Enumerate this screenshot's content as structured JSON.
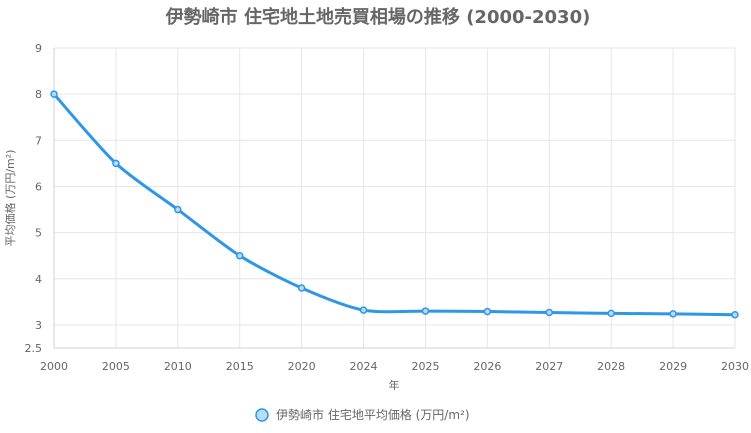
{
  "chart_data": {
    "type": "line",
    "title": "伊勢崎市 住宅地土地売買相場の推移 (2000-2030)",
    "xlabel": "年",
    "ylabel": "平均価格 (万円/m²)",
    "categories": [
      "2000",
      "2005",
      "2010",
      "2015",
      "2020",
      "2024",
      "2025",
      "2026",
      "2027",
      "2028",
      "2029",
      "2030"
    ],
    "series": [
      {
        "name": "伊勢崎市 住宅地平均価格 (万円/m²)",
        "values": [
          8.0,
          6.5,
          5.5,
          4.5,
          3.8,
          3.32,
          3.3,
          3.29,
          3.27,
          3.25,
          3.24,
          3.22
        ],
        "color": "#2e97e6",
        "point_fill": "#b8dcf5"
      }
    ],
    "ylim": [
      2.5,
      9
    ],
    "yticks": [
      "2.5",
      "3",
      "4",
      "5",
      "6",
      "7",
      "8",
      "9"
    ],
    "grid": true,
    "legend_position": "bottom"
  }
}
